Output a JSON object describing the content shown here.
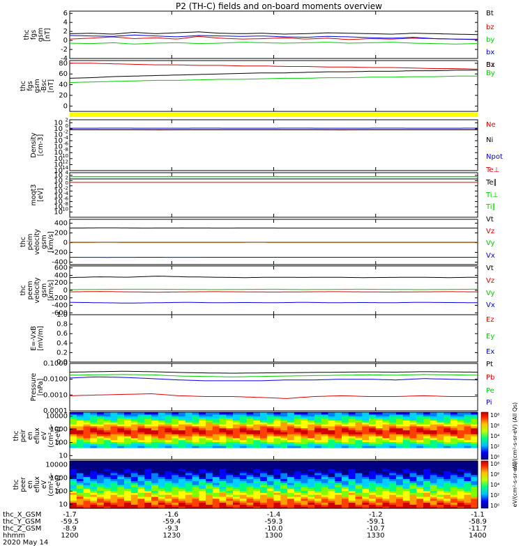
{
  "title": "P2 (TH-C) fields and on-board moments overview",
  "chart_data": [
    {
      "id": "p1",
      "type": "line",
      "ylabel_lines": [
        "thc",
        "fgs",
        "gsm",
        "[nT]"
      ],
      "ylim": [
        -4,
        6.5
      ],
      "yticks": [
        "6",
        "4",
        "2",
        "0",
        "-2",
        "-4"
      ],
      "ytick_values": [
        6,
        4,
        2,
        0,
        -2,
        -4
      ],
      "series": [
        {
          "name": "Bt",
          "color": "#000000",
          "values": [
            1.5,
            1.6,
            1.4,
            1.8,
            1.5,
            1.7,
            1.9,
            1.6,
            1.5,
            1.6,
            1.4,
            1.5,
            1.7,
            1.6,
            1.5,
            1.4,
            1.6,
            1.5,
            1.4,
            1.3
          ]
        },
        {
          "name": "bz",
          "color": "#dd0000",
          "values": [
            0.3,
            0.5,
            0.8,
            0.4,
            0.6,
            0.3,
            0.9,
            0.5,
            0.3,
            0.4,
            0.6,
            0.3,
            0.5,
            0.2,
            0.4,
            0.3,
            0.5,
            0.4,
            0.3,
            0.3
          ]
        },
        {
          "name": "by",
          "color": "#00cc00",
          "values": [
            -0.6,
            -0.7,
            -0.5,
            -0.8,
            -0.6,
            -0.5,
            -0.7,
            -0.6,
            -0.4,
            -0.5,
            -0.6,
            -0.5,
            -0.4,
            -0.6,
            -0.5,
            -0.4,
            -0.6,
            -0.7,
            -0.8,
            -0.7
          ]
        },
        {
          "name": "bx",
          "color": "#0000dd",
          "values": [
            1.1,
            1.0,
            0.9,
            1.2,
            1.0,
            0.8,
            1.1,
            1.0,
            0.9,
            1.0,
            0.8,
            0.7,
            0.9,
            0.8,
            0.6,
            0.5,
            0.7,
            0.4,
            0.3,
            0.2
          ]
        }
      ]
    },
    {
      "id": "p2",
      "type": "line",
      "ylabel_lines": [
        "thc",
        "fgs",
        "gsm",
        "-Bsc",
        "[nT]"
      ],
      "ylim": [
        -10,
        85
      ],
      "yticks": [
        "80",
        "60",
        "40",
        "20",
        "0"
      ],
      "ytick_values": [
        80,
        60,
        40,
        20,
        0
      ],
      "series": [
        {
          "name": "Bz",
          "color": "#dd0000",
          "values": [
            80,
            80,
            79,
            78,
            77,
            77,
            76,
            76,
            75,
            75,
            74,
            74,
            73,
            73,
            72,
            72,
            71,
            70,
            70,
            69
          ]
        },
        {
          "name": "Bx",
          "color": "#000000",
          "values": [
            52,
            53,
            55,
            56,
            57,
            58,
            59,
            60,
            61,
            62,
            62,
            63,
            64,
            64,
            65,
            65,
            66,
            66,
            67,
            67
          ]
        },
        {
          "name": "By",
          "color": "#00cc00",
          "values": [
            44,
            45,
            46,
            47,
            48,
            48,
            49,
            50,
            50,
            51,
            52,
            52,
            53,
            53,
            54,
            54,
            55,
            55,
            56,
            56
          ]
        }
      ]
    },
    {
      "id": "p3",
      "type": "bar",
      "note": "mode flag bar",
      "color": "#ffff00",
      "values": [
        1
      ]
    },
    {
      "id": "p4",
      "type": "line",
      "scale": "log",
      "ylabel_lines": [
        "Density",
        "[cm-3]"
      ],
      "ylim_exp": [
        -14,
        3
      ],
      "ytick_exps": [
        2,
        0,
        -2,
        -4,
        -6,
        -8,
        -10,
        -12,
        -14
      ],
      "series": [
        {
          "name": "Ne",
          "color": "#dd0000",
          "values": [
            0.5,
            0.5,
            0.4,
            0.5,
            0.5,
            0.5,
            0.4,
            0.5,
            0.5,
            0.5
          ]
        },
        {
          "name": "Ni",
          "color": "#000000",
          "values": [
            0.5,
            0.5,
            0.5,
            0.5,
            0.5,
            0.5,
            0.5,
            0.5,
            0.5,
            0.5
          ]
        },
        {
          "name": "Npot",
          "color": "#0000dd",
          "values": [
            1.5,
            1.6,
            1.5,
            1.6,
            1.5,
            1.6,
            1.5,
            1.6,
            1.5,
            1.6
          ]
        }
      ]
    },
    {
      "id": "p5",
      "type": "line",
      "scale": "log",
      "ylabel_lines": [
        "moqt3",
        "[eV]"
      ],
      "ylim_exp": [
        -12,
        5
      ],
      "ytick_exps": [
        4,
        2,
        0,
        -2,
        -4,
        -6,
        -8,
        -10
      ],
      "series": [
        {
          "name": "Te⊥",
          "color": "#dd0000",
          "values": [
            20,
            20,
            20,
            20,
            20,
            20,
            20,
            20,
            20,
            20
          ]
        },
        {
          "name": "Te∥",
          "color": "#000000",
          "values": [
            400,
            400,
            400,
            400,
            400,
            400,
            400,
            400,
            400,
            400
          ]
        },
        {
          "name": "Ti⊥",
          "color": "#00cc00",
          "values": [
            3000,
            3000,
            3000,
            3000,
            3000,
            3000,
            3000,
            3000,
            3000,
            3000
          ]
        },
        {
          "name": "Ti∥",
          "color": "#00cc00",
          "values": [
            3000,
            3000,
            3000,
            3000,
            3000,
            3000,
            3000,
            3000,
            3000,
            3000
          ]
        }
      ]
    },
    {
      "id": "p6",
      "type": "line",
      "ylabel_lines": [
        "thc",
        "peim",
        "velocity",
        "gsm",
        "[km/s]"
      ],
      "ylim": [
        -450,
        480
      ],
      "yticks": [
        "400",
        "200",
        "0",
        "-200",
        "-400"
      ],
      "ytick_values": [
        400,
        200,
        0,
        -200,
        -400
      ],
      "series": [
        {
          "name": "Vt",
          "color": "#000000",
          "values": [
            300,
            305,
            300,
            302,
            300,
            301,
            300,
            300,
            300,
            300,
            300,
            300
          ]
        },
        {
          "name": "Vz",
          "color": "#dd0000",
          "values": [
            5,
            6,
            5,
            5,
            5,
            6,
            5,
            5,
            5,
            5,
            5,
            5
          ]
        },
        {
          "name": "Vy",
          "color": "#00cc00",
          "values": [
            10,
            12,
            10,
            11,
            10,
            10,
            10,
            10,
            10,
            10,
            10,
            10
          ]
        },
        {
          "name": "Vx",
          "color": "#0000dd",
          "values": [
            -300,
            -302,
            -300,
            -301,
            -300,
            -300,
            -300,
            -300,
            -300,
            -300,
            -300,
            -300
          ]
        }
      ]
    },
    {
      "id": "p7",
      "type": "line",
      "ylabel_lines": [
        "thc",
        "peem",
        "velocity",
        "gsm",
        "[km/s]"
      ],
      "ylim": [
        -650,
        650
      ],
      "yticks": [
        "600",
        "400",
        "200",
        "0",
        "-200",
        "-400",
        "-600"
      ],
      "ytick_values": [
        600,
        400,
        200,
        0,
        -200,
        -400,
        -600
      ],
      "series": [
        {
          "name": "Vt",
          "color": "#000000",
          "values": [
            340,
            360,
            350,
            380,
            360,
            350,
            340,
            350,
            345,
            350,
            340,
            345,
            350,
            340,
            350
          ]
        },
        {
          "name": "Vz",
          "color": "#dd0000",
          "values": [
            -40,
            -30,
            -40,
            -50,
            -40,
            -35,
            -40,
            -45,
            -40,
            -35,
            -40,
            -45,
            -40,
            -35,
            -40
          ]
        },
        {
          "name": "Vy",
          "color": "#00cc00",
          "values": [
            20,
            25,
            30,
            30,
            25,
            20,
            25,
            30,
            20,
            25,
            30,
            25,
            20,
            25,
            30
          ]
        },
        {
          "name": "Vx",
          "color": "#0000dd",
          "values": [
            -320,
            -330,
            -340,
            -330,
            -320,
            -330,
            -325,
            -330,
            -320,
            -330,
            -325,
            -330,
            -320,
            -325,
            -330
          ]
        }
      ]
    },
    {
      "id": "p8",
      "type": "line",
      "ylabel_lines": [
        "E=-VxB",
        "[mV/m]"
      ],
      "ylim": [
        0,
        1
      ],
      "yticks": [
        "1.0",
        "0.8",
        "0.6",
        "0.4",
        "0.2",
        "0.0"
      ],
      "ytick_values": [
        1,
        0.8,
        0.6,
        0.4,
        0.2,
        0
      ],
      "series": [
        {
          "name": "Ez",
          "color": "#dd0000",
          "values": []
        },
        {
          "name": "Ey",
          "color": "#00cc00",
          "values": []
        },
        {
          "name": "Ex",
          "color": "#0000dd",
          "values": []
        }
      ]
    },
    {
      "id": "p9",
      "type": "line",
      "scale": "log",
      "ylabel_lines": [
        "Pressure",
        "[nPa]"
      ],
      "ylim_exp": [
        -4,
        -1
      ],
      "yticks": [
        "0.1000",
        "0.0100",
        "0.0010",
        "0.0001"
      ],
      "ytick_exps": [
        -1,
        -2,
        -3,
        -4
      ],
      "series": [
        {
          "name": "Pt",
          "color": "#000000",
          "values": [
            0.028,
            0.03,
            0.032,
            0.03,
            0.027,
            0.025,
            0.024,
            0.025,
            0.026,
            0.027,
            0.028,
            0.029,
            0.028,
            0.03,
            0.029,
            0.028
          ]
        },
        {
          "name": "Pb",
          "color": "#dd0000",
          "values": [
            0.0009,
            0.001,
            0.0011,
            0.0012,
            0.0009,
            0.0008,
            0.0008,
            0.0007,
            0.0006,
            0.0008,
            0.0009,
            0.0008,
            0.0008,
            0.0009,
            0.0008,
            0.0008
          ]
        },
        {
          "name": "Pe",
          "color": "#00cc00",
          "values": [
            0.018,
            0.019,
            0.02,
            0.019,
            0.016,
            0.015,
            0.014,
            0.015,
            0.016,
            0.017,
            0.018,
            0.019,
            0.018,
            0.02,
            0.019,
            0.018
          ]
        },
        {
          "name": "Pi",
          "color": "#0000dd",
          "values": [
            0.012,
            0.014,
            0.013,
            0.011,
            0.009,
            0.008,
            0.008,
            0.008,
            0.009,
            0.009,
            0.01,
            0.01,
            0.009,
            0.011,
            0.01,
            0.009
          ]
        }
      ]
    },
    {
      "id": "p10",
      "type": "heatmap",
      "ylabel_lines": [
        "thc",
        "peir",
        "en",
        "eflux",
        "eV",
        "(cm²-s-",
        "sr-eV)"
      ],
      "scale": "log",
      "ylim": [
        5,
        20000
      ],
      "yticks": [
        "10000",
        "1000",
        "100",
        "10"
      ],
      "ytick_values": [
        10000,
        1000,
        100,
        10
      ],
      "colorbar_label": "eV/(cm²-s-sr-eV) (All Qs)",
      "colorbar_ticks": [
        "10⁸",
        "10⁶",
        "10⁴",
        "10²",
        "10⁰"
      ]
    },
    {
      "id": "p11",
      "type": "heatmap",
      "ylabel_lines": [
        "thc",
        "peer",
        "en",
        "eflux",
        "eV",
        "(cm²-s-",
        "sr-eV)"
      ],
      "scale": "log",
      "ylim": [
        5,
        20000
      ],
      "yticks": [
        "10000",
        "1000",
        "100",
        "10"
      ],
      "ytick_values": [
        10000,
        1000,
        100,
        10
      ],
      "colorbar_label": "eV/(cm²-s-sr-eV)",
      "colorbar_ticks": [
        "10⁸",
        "10⁶",
        "10⁴",
        "10²",
        "10⁰"
      ]
    }
  ],
  "x_axis": {
    "row_labels": [
      "thc_X_GSM",
      "thc_Y_GSM",
      "thc_Z_GSM",
      "hhmm",
      "2020 May 14"
    ],
    "ticks": [
      {
        "x_gsm": "-1.7",
        "y_gsm": "-59.5",
        "z_gsm": "-8.9",
        "hhmm": "1200"
      },
      {
        "x_gsm": "-1.6",
        "y_gsm": "-59.4",
        "z_gsm": "-9.3",
        "hhmm": "1230"
      },
      {
        "x_gsm": "-1.4",
        "y_gsm": "-59.3",
        "z_gsm": "-10.0",
        "hhmm": "1300"
      },
      {
        "x_gsm": "-1.2",
        "y_gsm": "-59.1",
        "z_gsm": "-10.7",
        "hhmm": "1330"
      },
      {
        "x_gsm": "-1.1",
        "y_gsm": "-58.9",
        "z_gsm": "-11.7",
        "hhmm": "1400"
      }
    ]
  }
}
